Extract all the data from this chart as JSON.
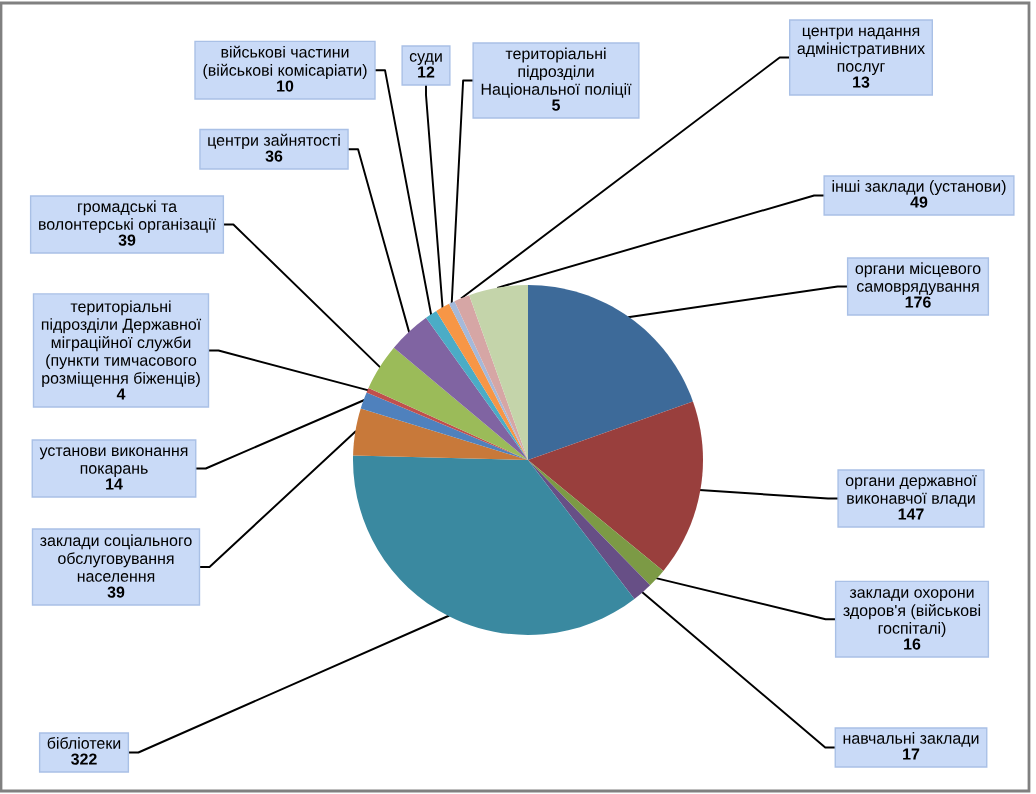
{
  "chart_data": {
    "type": "pie",
    "categories": [
      "органи місцевого\nсамоврядування",
      "органи державної\nвиконавчої влади",
      "заклади охорони\nздоров'я (військові\nгоспіталі)",
      "навчальні заклади",
      "бібліотеки",
      "заклади соціального\nобслуговування\nнаселення",
      "установи виконання\nпокарань",
      "територіальні\nпідрозділи Державної\nміграційної служби\n(пункти тимчасового\nрозміщення біженців)",
      "громадські та\nволонтерські організації",
      "центри зайнятості",
      "військові частини\n(військові комісаріати)",
      "суди",
      "територіальні\nпідрозділи\nНаціональної поліції",
      "центри надання\nадміністративних\nпослуг",
      "інші заклади (установи)"
    ],
    "values": [
      176,
      147,
      16,
      17,
      322,
      39,
      14,
      4,
      39,
      36,
      10,
      12,
      5,
      13,
      49
    ],
    "colors": [
      "#3d6a99",
      "#993f3d",
      "#7c9a45",
      "#674f86",
      "#3a89a0",
      "#c8793a",
      "#4f81bd",
      "#c0504d",
      "#9bbb59",
      "#8064a2",
      "#4bacc6",
      "#f79646",
      "#a5b9da",
      "#d6a6a5",
      "#c4d4aa"
    ],
    "data_labels": true
  }
}
